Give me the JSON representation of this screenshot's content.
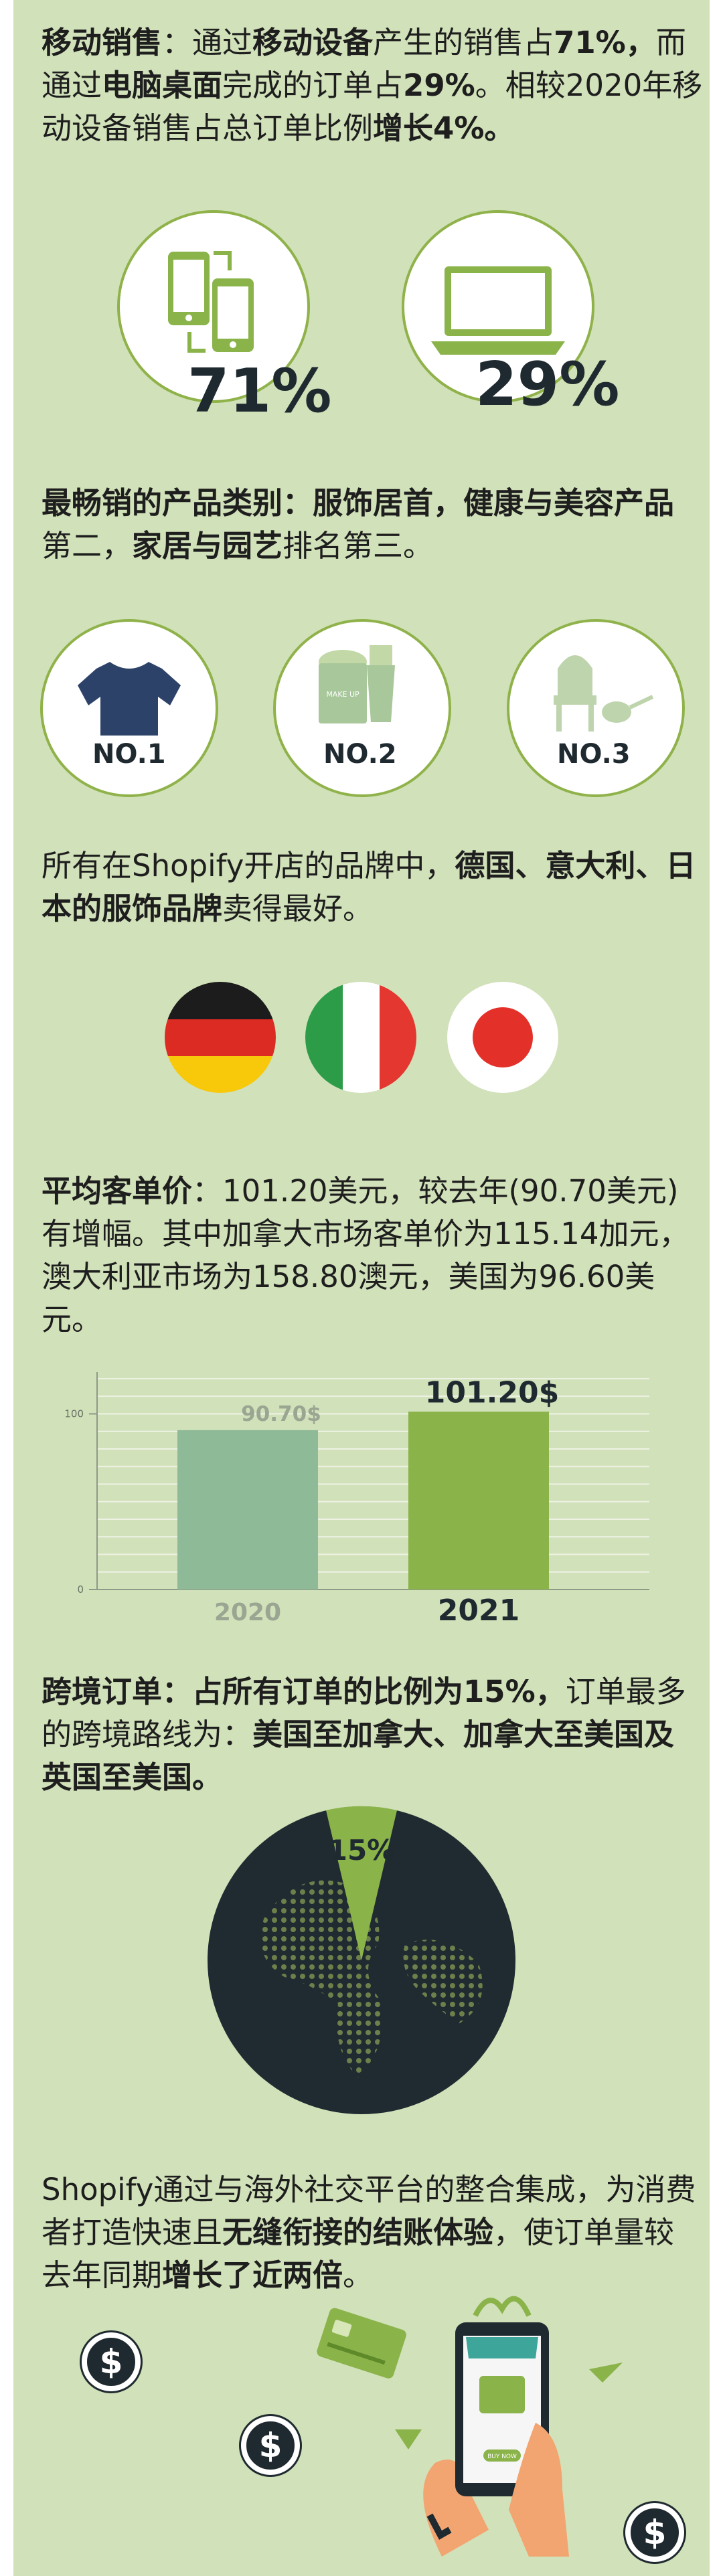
{
  "mobile_sales": {
    "t1": "移动销售",
    "t2": "：通过",
    "t3": "移动设备",
    "t4": "产生的销售占",
    "t5": "71%，",
    "t6": "而通过",
    "t7": "电脑桌面",
    "t8": "完成的订单占",
    "t9": "29%",
    "t10": "。相较2020年移动设备销售占总订单比例",
    "t11": "增长4%。",
    "mobile_pct": "71%",
    "desktop_pct": "29%"
  },
  "categories": {
    "t1": "最畅销的产品类别：服饰居首，健康与美容产品",
    "t2": "第二，",
    "t3": "家居与园艺",
    "t4": "排名第三。",
    "rank1": "NO.1",
    "rank2": "NO.2",
    "rank3": "NO.3",
    "makeup_label": "MAKE UP"
  },
  "brands": {
    "t1": "所有在Shopify开店的品牌中，",
    "t2": "德国、意大利、日本的服饰品牌",
    "t3": "卖得最好。"
  },
  "aov": {
    "t1": "平均客单价",
    "t2": "：101.20美元，较去年(90.70美元)有增幅。其中加拿大市场客单价为115.14加元，澳大利亚市场为158.80澳元，美国为96.60美元。"
  },
  "chart_data": {
    "type": "bar",
    "categories": [
      "2020",
      "2021"
    ],
    "values": [
      90.7,
      101.2
    ],
    "data_labels": [
      "90.70$",
      "101.20$"
    ],
    "ylim": [
      0,
      120
    ],
    "yticks": [
      "0",
      "100"
    ],
    "grid": true,
    "colors": [
      "#8fba98",
      "#8ab34a"
    ]
  },
  "cross_border": {
    "t1": "跨境订单：占所有订单的比例为15%，",
    "t2": "订单最多的跨境路线为：",
    "t3": "美国至加拿大、加拿大至美国及英国至美国。",
    "pct": "15%"
  },
  "checkout": {
    "t1": "Shopify通过与海外社交平台的整合集成，为消费者打造快速且",
    "t2": "无缝衔接的结账体验",
    "t3": "，使订单量较去年同期",
    "t4": "增长了近两倍",
    "t5": "。",
    "buy_label": "BUY NOW",
    "dollar": "$"
  }
}
